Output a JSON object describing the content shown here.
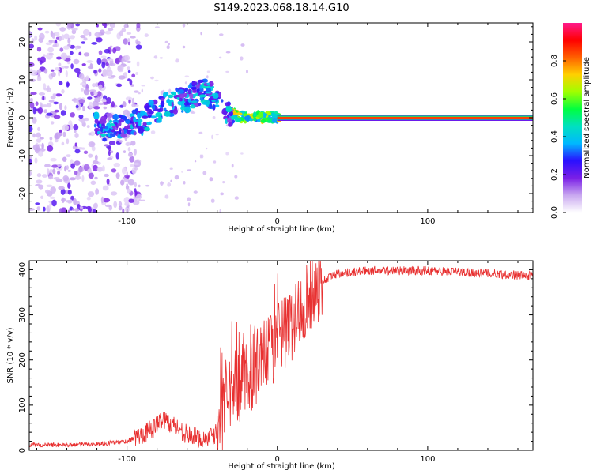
{
  "title": "S149.2023.068.18.14.G10",
  "chart_data": [
    {
      "type": "heatmap",
      "xlabel": "Height of straight line (km)",
      "ylabel": "Frequency (Hz)",
      "xlim": [
        -165,
        170
      ],
      "ylim": [
        -25,
        25
      ],
      "xticks": [
        -100,
        0,
        100
      ],
      "yticks": [
        -20,
        -10,
        0,
        10,
        20
      ],
      "colorbar": {
        "label": "Normalized spectral amplitude",
        "range": [
          0,
          1
        ],
        "ticks": [
          0.0,
          0.2,
          0.4,
          0.6,
          0.8
        ],
        "colormap": [
          "#ffffff",
          "#c9a8f0",
          "#7a1fe6",
          "#2a10ff",
          "#00b8ff",
          "#00e0c0",
          "#00ff40",
          "#a0ff00",
          "#ffd000",
          "#ff6000",
          "#ff0000",
          "#ff1a8c"
        ]
      },
      "features": {
        "noise_region_x": [
          -165,
          -100
        ],
        "tone_track": [
          {
            "x": -120,
            "f": -2.5
          },
          {
            "x": -110,
            "f": -3
          },
          {
            "x": -100,
            "f": -1.5
          },
          {
            "x": -90,
            "f": -1
          },
          {
            "x": -80,
            "f": 2
          },
          {
            "x": -70,
            "f": 4
          },
          {
            "x": -60,
            "f": 5
          },
          {
            "x": -50,
            "f": 7
          },
          {
            "x": -45,
            "f": 6
          },
          {
            "x": -40,
            "f": 5
          },
          {
            "x": -35,
            "f": 2
          },
          {
            "x": -30,
            "f": 1
          },
          {
            "x": -20,
            "f": 0
          },
          {
            "x": -10,
            "f": 0
          },
          {
            "x": 0,
            "f": 0
          }
        ],
        "carrier_line": {
          "f": 0,
          "x_start": 0,
          "x_end": 170,
          "amplitude": 0.85
        }
      }
    },
    {
      "type": "line",
      "xlabel": "Height of straight line (km)",
      "ylabel": "SNR (10 * v/v)",
      "xlim": [
        -165,
        170
      ],
      "ylim": [
        0,
        420
      ],
      "xticks": [
        -100,
        0,
        100
      ],
      "yticks": [
        0,
        100,
        200,
        300,
        400
      ],
      "color": "#e83030",
      "trend": [
        {
          "x": -165,
          "y": 12
        },
        {
          "x": -140,
          "y": 12
        },
        {
          "x": -120,
          "y": 14
        },
        {
          "x": -100,
          "y": 20
        },
        {
          "x": -90,
          "y": 35
        },
        {
          "x": -82,
          "y": 50
        },
        {
          "x": -76,
          "y": 70
        },
        {
          "x": -70,
          "y": 58
        },
        {
          "x": -60,
          "y": 35
        },
        {
          "x": -50,
          "y": 25
        },
        {
          "x": -42,
          "y": 30
        },
        {
          "x": -38,
          "y": 60
        },
        {
          "x": -32,
          "y": 110
        },
        {
          "x": -28,
          "y": 140
        },
        {
          "x": -20,
          "y": 160
        },
        {
          "x": -10,
          "y": 200
        },
        {
          "x": 0,
          "y": 240
        },
        {
          "x": 10,
          "y": 280
        },
        {
          "x": 15,
          "y": 310
        },
        {
          "x": 20,
          "y": 340
        },
        {
          "x": 30,
          "y": 375
        },
        {
          "x": 40,
          "y": 392
        },
        {
          "x": 60,
          "y": 398
        },
        {
          "x": 100,
          "y": 398
        },
        {
          "x": 140,
          "y": 392
        },
        {
          "x": 170,
          "y": 386
        }
      ]
    }
  ]
}
